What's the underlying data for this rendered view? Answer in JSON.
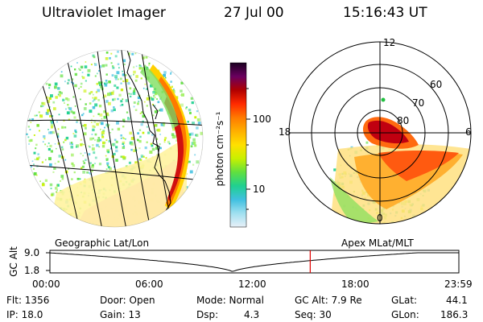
{
  "header": {
    "instrument": "Ultraviolet Imager",
    "date": "27 Jul 00",
    "time": "15:16:43 UT"
  },
  "colorbar": {
    "unit_label": "photon cm⁻²s⁻¹",
    "ticks": [
      "100",
      "10"
    ],
    "colors": [
      "#1a0020",
      "#6a0060",
      "#b00000",
      "#ff2a00",
      "#ff7a00",
      "#ffb000",
      "#ffe000",
      "#c8f000",
      "#60e040",
      "#20d090",
      "#40c0e0",
      "#a0e0f0",
      "#e8f0f8"
    ]
  },
  "geo_panel": {
    "label": "Geographic Lat/Lon"
  },
  "polar_panel": {
    "label": "Apex MLat/MLT",
    "mlt_labels": [
      "12",
      "18",
      "6",
      "0"
    ],
    "lat_labels": [
      "60",
      "70",
      "80"
    ]
  },
  "orbit_plot": {
    "ylabel": "GC Alt",
    "yticks": [
      "9.0",
      "1.8"
    ],
    "xticks": [
      "00:00",
      "06:00",
      "12:00",
      "18:00",
      "23:59"
    ],
    "marker_time": "15:16"
  },
  "status": {
    "flt": "Flt: 1356",
    "ip": "IP: 18.0",
    "door": "Door: Open",
    "gain": "Gain: 13",
    "mode": "Mode: Normal",
    "dsp_label": "Dsp:",
    "dsp_value": "4.3",
    "gc_alt": "GC Alt: 7.9 Re",
    "seq": "Seq: 30",
    "glat_label": "GLat:",
    "glat_value": "44.1",
    "glon_label": "GLon:",
    "glon_value": "186.3"
  }
}
